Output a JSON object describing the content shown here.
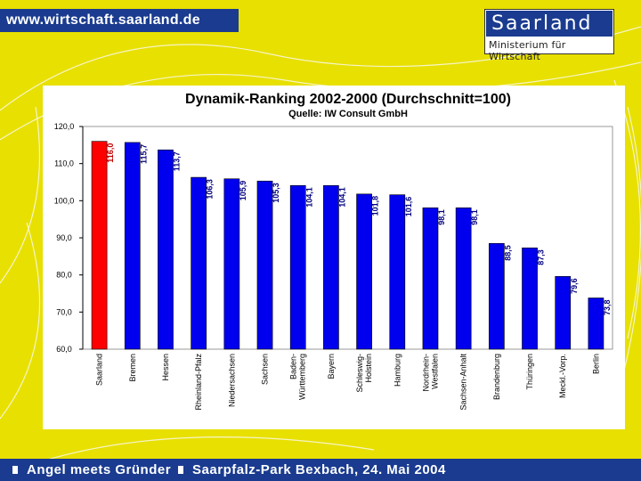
{
  "header": {
    "url": "www.wirtschaft.saarland.de",
    "logo_title": "Saarland",
    "logo_subtitle": "Ministerium für Wirtschaft"
  },
  "footer": {
    "left_text": "Angel meets Gründer",
    "right_text": "Saarpfalz-Park Bexbach, 24. Mai 2004"
  },
  "colors": {
    "background": "#e8e000",
    "brand_blue": "#1a3b8f",
    "bar_blue": "#0000ee",
    "bar_red": "#ff0000"
  },
  "chart_data": {
    "type": "bar",
    "title": "Dynamik-Ranking 2002-2000 (Durchschnitt=100)",
    "subtitle": "Quelle: IW Consult GmbH",
    "xlabel": "",
    "ylabel": "",
    "ylim": [
      60,
      120
    ],
    "yticks": [
      "60,0",
      "70,0",
      "80,0",
      "90,0",
      "100,0",
      "110,0",
      "120,0"
    ],
    "yticks_values": [
      60,
      70,
      80,
      90,
      100,
      110,
      120
    ],
    "grid": false,
    "categories": [
      "Saarland",
      "Bremen",
      "Hessen",
      "Rheinland-Pfalz",
      "Niedersachsen",
      "Sachsen",
      "Baden-Württemberg",
      "Bayern",
      "Schleswig-Holstein",
      "Hamburg",
      "Nordrhein-Westfalen",
      "Sachsen-Anhalt",
      "Brandenburg",
      "Thüringen",
      "Meckl.-Vorp.",
      "Berlin"
    ],
    "values": [
      116.0,
      115.7,
      113.7,
      106.3,
      105.9,
      105.3,
      104.1,
      104.1,
      101.8,
      101.6,
      98.1,
      98.1,
      88.5,
      87.3,
      79.6,
      73.8
    ],
    "labels": [
      "116,0",
      "115,7",
      "113,7",
      "106,3",
      "105,9",
      "105,3",
      "104,1",
      "104,1",
      "101,8",
      "101,6",
      "98,1",
      "98,1",
      "88,5",
      "87,3",
      "79,6",
      "73,8"
    ],
    "highlight_index": 0
  }
}
